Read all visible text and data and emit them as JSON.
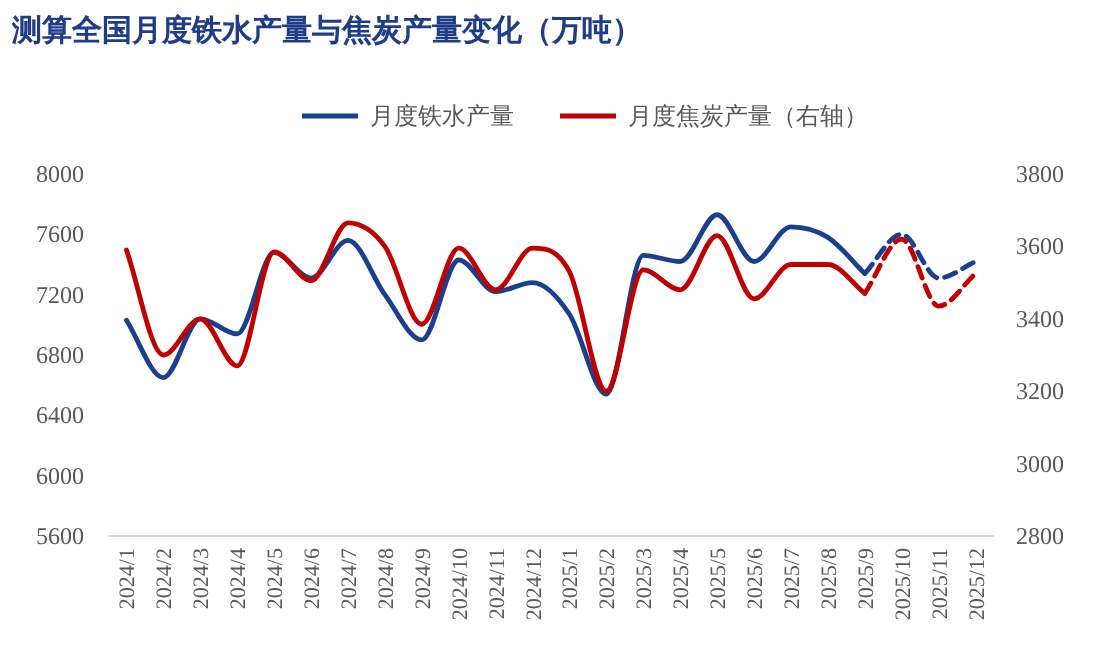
{
  "chart_data": {
    "type": "line",
    "title": "测算全国月度铁水产量与焦炭产量变化（万吨）",
    "categories": [
      "2024/1",
      "2024/2",
      "2024/3",
      "2024/4",
      "2024/5",
      "2024/6",
      "2024/7",
      "2024/8",
      "2024/9",
      "2024/10",
      "2024/11",
      "2024/12",
      "2025/1",
      "2025/2",
      "2025/3",
      "2025/4",
      "2025/5",
      "2025/6",
      "2025/7",
      "2025/8",
      "2025/9",
      "2025/10",
      "2025/11",
      "2025/12"
    ],
    "series": [
      {
        "name": "月度铁水产量",
        "color": "#1a3f8f",
        "line_style": "solid",
        "values": [
          7030,
          6650,
          7040,
          6940,
          7480,
          7310,
          7560,
          7200,
          6900,
          7430,
          7220,
          7280,
          7070,
          6540,
          7460,
          7420,
          7730,
          7420,
          7650,
          7580,
          7340,
          null,
          null,
          null
        ]
      },
      {
        "color": "#1a3f8f",
        "line_style": "dashed",
        "values": [
          null,
          null,
          null,
          null,
          null,
          null,
          null,
          null,
          null,
          null,
          null,
          null,
          null,
          null,
          null,
          null,
          null,
          null,
          null,
          null,
          7340,
          7600,
          7310,
          7420
        ]
      },
      {
        "name": "月度焦炭产量（右轴）",
        "color": "#c00000",
        "axis": "y2",
        "line_style": "solid",
        "values": [
          3590,
          3300,
          3400,
          3270,
          3585,
          3505,
          3665,
          3600,
          3385,
          3595,
          3480,
          3595,
          3530,
          3200,
          3535,
          3480,
          3630,
          3455,
          3550,
          3550,
          3470,
          null,
          null,
          null
        ]
      },
      {
        "color": "#c00000",
        "axis": "y2",
        "line_style": "dashed",
        "values": [
          null,
          null,
          null,
          null,
          null,
          null,
          null,
          null,
          null,
          null,
          null,
          null,
          null,
          null,
          null,
          null,
          null,
          null,
          null,
          null,
          3470,
          3620,
          3435,
          3525
        ]
      }
    ],
    "ylim": [
      5600,
      8000
    ],
    "yticks": [
      5600,
      6000,
      6400,
      6800,
      7200,
      7600,
      8000
    ],
    "y2lim": [
      2800,
      3800
    ],
    "y2ticks": [
      2800,
      3000,
      3200,
      3400,
      3600,
      3800
    ],
    "grid": false,
    "legend": "top"
  }
}
